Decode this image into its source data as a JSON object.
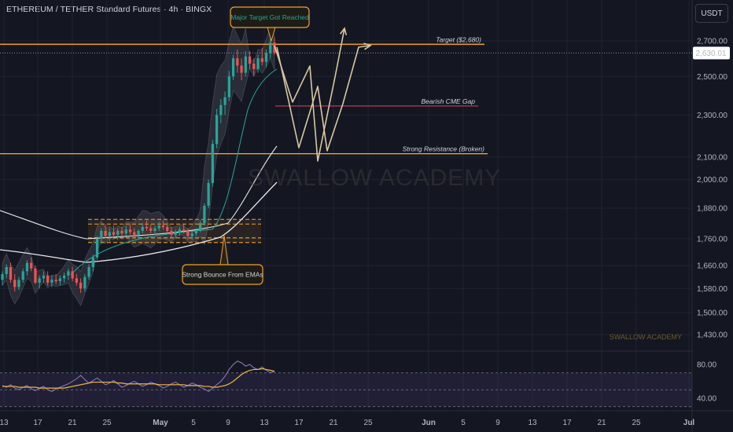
{
  "header": {
    "title": "ETHEREUM / TETHER Standard Futures · 4h · BINGX",
    "currency": "USDT"
  },
  "colors": {
    "background": "#141722",
    "up": "#26a69a",
    "down": "#ef5350",
    "level": "#f0a030",
    "cme": "#c2405a",
    "projection": "#d8c7a0",
    "rsi": "#f0b840",
    "rsi_band": "#7e57c2"
  },
  "watermark": "SWALLOW ACADEMY",
  "watermark_small": "SWALLOW ACADEMY",
  "chart_data": {
    "type": "candlestick",
    "timeframe": "4h",
    "x_ticks": [
      "13",
      "17",
      "21",
      "25",
      "May",
      "5",
      "9",
      "13",
      "17",
      "21",
      "25",
      "Jun",
      "5",
      "9",
      "13",
      "17",
      "21",
      "25",
      "Jul"
    ],
    "price_ticks": [
      "2,700.00",
      "2,500.00",
      "2,300.00",
      "2,100.00",
      "2,000.00",
      "1,880.00",
      "1,760.00",
      "1,660.00",
      "1,580.00",
      "1,500.00",
      "1,430.00"
    ],
    "price_axis_values": [
      2700,
      2500,
      2300,
      2100,
      2000,
      1880,
      1760,
      1660,
      1580,
      1500,
      1430
    ],
    "y_scale": "log",
    "current_price": 2630.01,
    "current_price_label": "2,630.01",
    "levels": [
      {
        "label": "Target ($2,680)",
        "price": 2680
      },
      {
        "label": "Bearish CME Gap",
        "price": 2345
      },
      {
        "label": "Strong Resistance (Broken)",
        "price": 2115
      }
    ],
    "annotations": [
      {
        "text": "Major Target Got Reached"
      },
      {
        "text": "Strong Bounce From EMAs"
      }
    ],
    "rsi": {
      "ticks": [
        "80.00",
        "40.00"
      ],
      "tick_values": [
        80,
        40
      ],
      "upper": 70,
      "lower": 30,
      "values": [
        55,
        53,
        56,
        52,
        50,
        53,
        55,
        51,
        49,
        52,
        54,
        50,
        48,
        51,
        53,
        55,
        57,
        60,
        63,
        67,
        62,
        58,
        61,
        64,
        60,
        56,
        58,
        61,
        57,
        53,
        55,
        58,
        60,
        57,
        54,
        56,
        59,
        57,
        55,
        52,
        54,
        57,
        59,
        56,
        53,
        55,
        58,
        56,
        53,
        51,
        48,
        52,
        56,
        60,
        66,
        74,
        80,
        84,
        82,
        78,
        80,
        76,
        74,
        77,
        73,
        70,
        72
      ],
      "ma_values": [
        54,
        54,
        54,
        54,
        53,
        53,
        53,
        53,
        53,
        52,
        52,
        52,
        52,
        52,
        52,
        52,
        53,
        54,
        55,
        56,
        57,
        58,
        59,
        59,
        59,
        59,
        59,
        59,
        58,
        58,
        57,
        57,
        57,
        57,
        57,
        57,
        57,
        57,
        56,
        56,
        56,
        56,
        56,
        56,
        56,
        55,
        55,
        55,
        55,
        54,
        54,
        53,
        53,
        54,
        55,
        57,
        60,
        64,
        68,
        71,
        73,
        74,
        74,
        75,
        74,
        73,
        72
      ]
    },
    "ohlc_series": [
      [
        1610,
        1640,
        1590,
        1630
      ],
      [
        1630,
        1665,
        1615,
        1655
      ],
      [
        1655,
        1670,
        1600,
        1610
      ],
      [
        1610,
        1630,
        1570,
        1585
      ],
      [
        1585,
        1620,
        1575,
        1610
      ],
      [
        1610,
        1650,
        1600,
        1640
      ],
      [
        1640,
        1680,
        1625,
        1670
      ],
      [
        1670,
        1690,
        1640,
        1650
      ],
      [
        1650,
        1660,
        1595,
        1600
      ],
      [
        1600,
        1625,
        1580,
        1615
      ],
      [
        1615,
        1640,
        1600,
        1625
      ],
      [
        1625,
        1640,
        1590,
        1600
      ],
      [
        1600,
        1625,
        1585,
        1610
      ],
      [
        1610,
        1630,
        1595,
        1605
      ],
      [
        1605,
        1625,
        1590,
        1615
      ],
      [
        1615,
        1635,
        1600,
        1625
      ],
      [
        1625,
        1650,
        1610,
        1640
      ],
      [
        1640,
        1655,
        1605,
        1615
      ],
      [
        1615,
        1630,
        1590,
        1600
      ],
      [
        1600,
        1615,
        1565,
        1580
      ],
      [
        1580,
        1630,
        1570,
        1620
      ],
      [
        1620,
        1665,
        1610,
        1655
      ],
      [
        1655,
        1700,
        1640,
        1690
      ],
      [
        1690,
        1770,
        1680,
        1760
      ],
      [
        1760,
        1800,
        1740,
        1790
      ],
      [
        1790,
        1815,
        1760,
        1770
      ],
      [
        1770,
        1800,
        1750,
        1785
      ],
      [
        1785,
        1810,
        1765,
        1775
      ],
      [
        1775,
        1800,
        1755,
        1790
      ],
      [
        1790,
        1805,
        1770,
        1780
      ],
      [
        1780,
        1810,
        1770,
        1795
      ],
      [
        1795,
        1815,
        1775,
        1785
      ],
      [
        1785,
        1800,
        1760,
        1775
      ],
      [
        1775,
        1795,
        1760,
        1790
      ],
      [
        1790,
        1820,
        1780,
        1805
      ],
      [
        1805,
        1830,
        1790,
        1800
      ],
      [
        1800,
        1815,
        1780,
        1790
      ],
      [
        1790,
        1810,
        1775,
        1800
      ],
      [
        1800,
        1825,
        1790,
        1810
      ],
      [
        1810,
        1830,
        1795,
        1805
      ],
      [
        1805,
        1820,
        1780,
        1790
      ],
      [
        1790,
        1805,
        1765,
        1775
      ],
      [
        1775,
        1795,
        1760,
        1785
      ],
      [
        1785,
        1805,
        1770,
        1795
      ],
      [
        1795,
        1815,
        1780,
        1790
      ],
      [
        1790,
        1800,
        1755,
        1770
      ],
      [
        1770,
        1790,
        1755,
        1780
      ],
      [
        1780,
        1800,
        1770,
        1790
      ],
      [
        1790,
        1830,
        1785,
        1820
      ],
      [
        1820,
        1900,
        1810,
        1890
      ],
      [
        1890,
        2000,
        1880,
        1985
      ],
      [
        1985,
        2180,
        1970,
        2160
      ],
      [
        2160,
        2330,
        2140,
        2300
      ],
      [
        2300,
        2380,
        2260,
        2350
      ],
      [
        2350,
        2420,
        2300,
        2390
      ],
      [
        2390,
        2530,
        2370,
        2500
      ],
      [
        2500,
        2620,
        2480,
        2600
      ],
      [
        2600,
        2650,
        2520,
        2560
      ],
      [
        2560,
        2600,
        2480,
        2520
      ],
      [
        2520,
        2640,
        2500,
        2610
      ],
      [
        2610,
        2640,
        2540,
        2570
      ],
      [
        2570,
        2600,
        2500,
        2540
      ],
      [
        2540,
        2620,
        2520,
        2600
      ],
      [
        2600,
        2660,
        2560,
        2580
      ],
      [
        2580,
        2650,
        2550,
        2630
      ],
      [
        2630,
        2720,
        2600,
        2690
      ],
      [
        2690,
        2720,
        2620,
        2630
      ]
    ]
  }
}
